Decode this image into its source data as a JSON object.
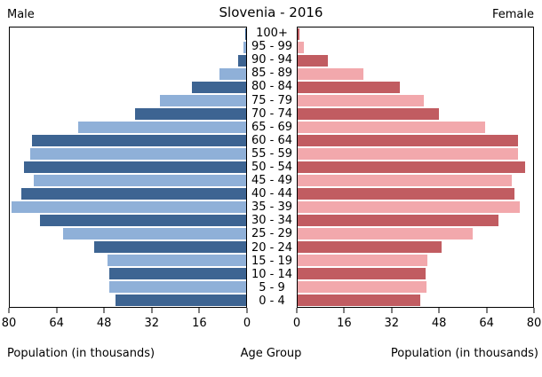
{
  "header": {
    "left_label": "Male",
    "title": "Slovenia - 2016",
    "right_label": "Female"
  },
  "captions": {
    "left": "Population (in thousands)",
    "center": "Age Group",
    "right": "Population (in thousands)"
  },
  "colors": {
    "male_dark": "#3d6492",
    "male_light": "#8fb0d8",
    "female_dark": "#c15c61",
    "female_light": "#f2a8ac"
  },
  "chart_data": {
    "type": "bar",
    "subtype": "population-pyramid",
    "title": "Slovenia - 2016",
    "xlabel": "Population (in thousands)",
    "center_axis_label": "Age Group",
    "xlim": [
      0,
      80
    ],
    "male_tick_labels": [
      "80",
      "64",
      "48",
      "32",
      "16",
      "0"
    ],
    "female_tick_labels": [
      "0",
      "16",
      "32",
      "48",
      "64",
      "80"
    ],
    "age_groups": [
      "100+",
      "95 - 99",
      "90 - 94",
      "85 - 89",
      "80 - 84",
      "75 - 79",
      "70 - 74",
      "65 - 69",
      "60 - 64",
      "55 - 59",
      "50 - 54",
      "45 - 49",
      "40 - 44",
      "35 - 39",
      "30 - 34",
      "25 - 29",
      "20 - 24",
      "15 - 19",
      "10 - 14",
      "5 - 9",
      "0 - 4"
    ],
    "series": [
      {
        "name": "Male",
        "values": [
          0.2,
          0.9,
          2.7,
          8.9,
          18.3,
          29.1,
          37.6,
          56.8,
          72.4,
          73.1,
          75.2,
          71.9,
          76.1,
          79.4,
          69.8,
          62.0,
          51.3,
          46.9,
          46.2,
          46.4,
          44.3
        ]
      },
      {
        "name": "Female",
        "values": [
          0.6,
          2.2,
          10.3,
          22.3,
          34.6,
          43.0,
          48.1,
          63.8,
          74.8,
          75.0,
          77.3,
          72.8,
          73.6,
          75.6,
          68.1,
          59.6,
          48.8,
          44.1,
          43.4,
          43.8,
          41.6
        ]
      }
    ]
  }
}
